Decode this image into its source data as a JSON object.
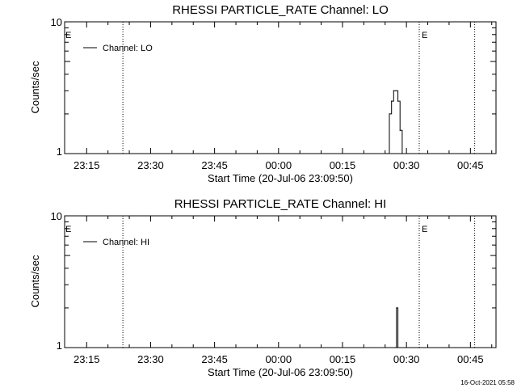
{
  "footer": {
    "timestamp": "16-Oct-2021 05:58"
  },
  "chart_data": [
    {
      "type": "line",
      "title": "RHESSI PARTICLE_RATE Channel: LO",
      "xlabel": "Start Time (20-Jul-06 23:09:50)",
      "ylabel": "Counts/sec",
      "y_scale": "log",
      "ylim": [
        1,
        10
      ],
      "xlim": [
        "23:09:50",
        "00:51:00"
      ],
      "x_tick_labels": [
        "23:15",
        "23:30",
        "23:45",
        "00:00",
        "00:15",
        "00:30",
        "00:45"
      ],
      "y_tick_labels": [
        "1",
        "10"
      ],
      "legend": {
        "position": "top-left",
        "entries": [
          "Channel: LO"
        ]
      },
      "vertical_markers": [
        {
          "time": "23:23:30",
          "label": ""
        },
        {
          "time": "00:33:00",
          "label": "E"
        },
        {
          "time": "00:46:00",
          "label": ""
        }
      ],
      "start_marker_label": "E",
      "series": [
        {
          "name": "Channel: LO",
          "color": "#000000",
          "x": [
            "00:25:30",
            "00:26:00",
            "00:26:30",
            "00:27:00",
            "00:27:30",
            "00:28:00",
            "00:28:30",
            "00:29:00"
          ],
          "values": [
            1,
            2,
            2.5,
            3,
            3,
            2.5,
            1.5,
            1
          ]
        }
      ]
    },
    {
      "type": "line",
      "title": "RHESSI PARTICLE_RATE Channel: HI",
      "xlabel": "Start Time (20-Jul-06 23:09:50)",
      "ylabel": "Counts/sec",
      "y_scale": "log",
      "ylim": [
        1,
        10
      ],
      "xlim": [
        "23:09:50",
        "00:51:00"
      ],
      "x_tick_labels": [
        "23:15",
        "23:30",
        "23:45",
        "00:00",
        "00:15",
        "00:30",
        "00:45"
      ],
      "y_tick_labels": [
        "1",
        "10"
      ],
      "legend": {
        "position": "top-left",
        "entries": [
          "Channel: HI"
        ]
      },
      "vertical_markers": [
        {
          "time": "23:23:30",
          "label": ""
        },
        {
          "time": "00:33:00",
          "label": "E"
        },
        {
          "time": "00:46:00",
          "label": ""
        }
      ],
      "start_marker_label": "E",
      "series": [
        {
          "name": "Channel: HI",
          "color": "#000000",
          "x": [
            "00:27:20",
            "00:27:40",
            "00:28:00"
          ],
          "values": [
            1,
            2,
            1
          ]
        }
      ]
    }
  ]
}
